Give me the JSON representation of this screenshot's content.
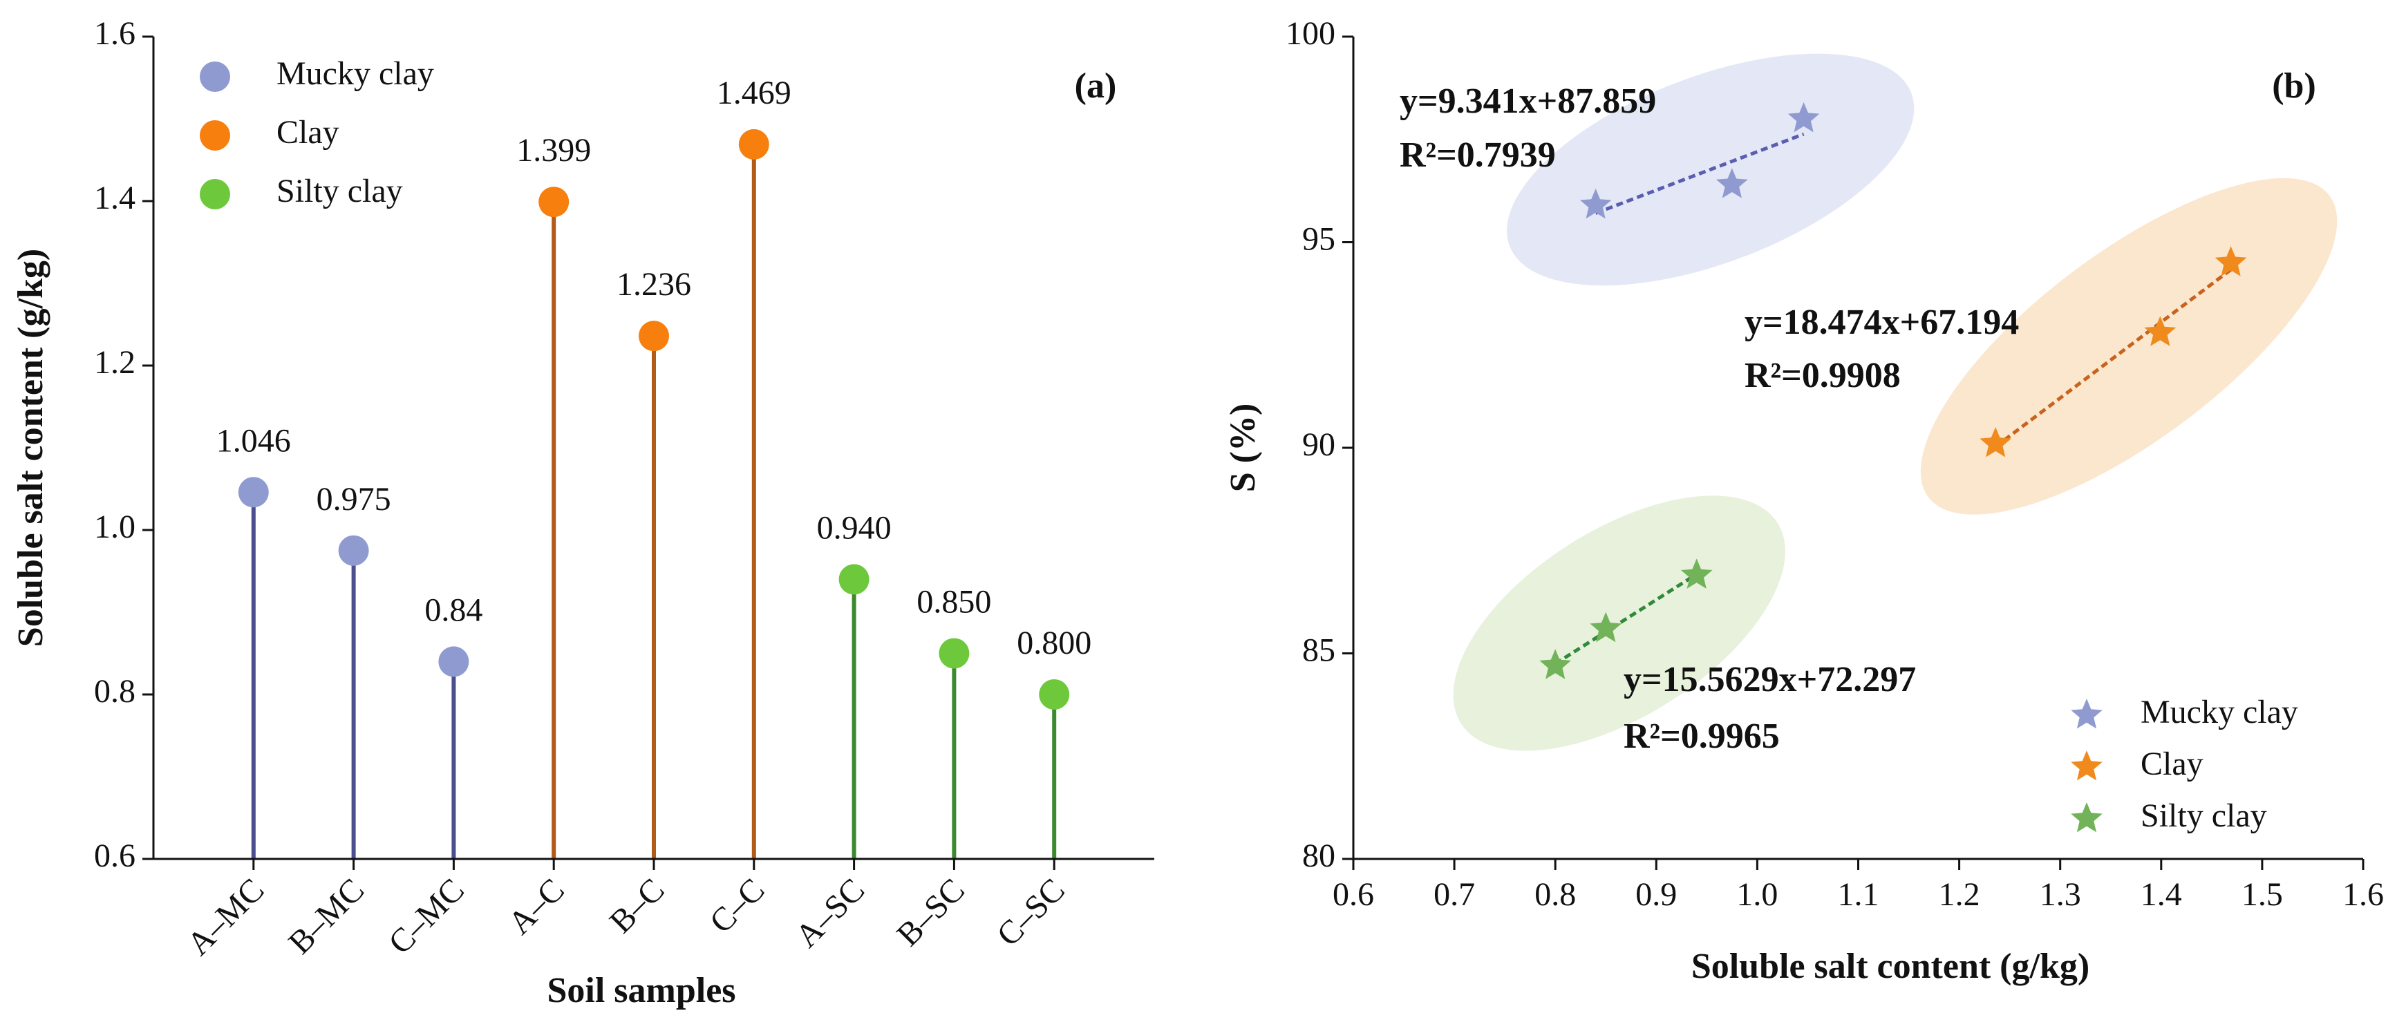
{
  "chart_data": [
    {
      "type": "lollipop",
      "annotation": "(a)",
      "xlabel": "Soil samples",
      "ylabel": "Soluble salt content (g/kg)",
      "categories": [
        "A–MC",
        "B–MC",
        "C–MC",
        "A–C",
        "B–C",
        "C–C",
        "A–SC",
        "B–SC",
        "C–SC"
      ],
      "ylim": [
        0.6,
        1.6
      ],
      "yticks": [
        0.6,
        0.8,
        {
          "value": 1,
          "label": "1.0"
        },
        1.2,
        1.4,
        1.6
      ],
      "legend": "top-left",
      "series": [
        {
          "name": "Mucky clay",
          "color": "#8f9bd0",
          "stem_color": "#4b4f8e",
          "label_color": "#5a5e9c",
          "values": [
            1.046,
            0.975,
            0.84,
            null,
            null,
            null,
            null,
            null,
            null
          ],
          "value_labels": [
            "1.046",
            "0.975",
            "0.84",
            null,
            null,
            null,
            null,
            null,
            null
          ]
        },
        {
          "name": "Clay",
          "color": "#f77f0e",
          "stem_color": "#b25a18",
          "label_color": "#a55a1c",
          "values": [
            null,
            null,
            null,
            1.399,
            1.236,
            1.469,
            null,
            null,
            null
          ],
          "value_labels": [
            null,
            null,
            null,
            "1.399",
            "1.236",
            "1.469",
            null,
            null,
            null
          ]
        },
        {
          "name": "Silty clay",
          "color": "#6dc93b",
          "stem_color": "#3c8a30",
          "label_color": "#3fb56d",
          "values": [
            null,
            null,
            null,
            null,
            null,
            null,
            0.94,
            0.85,
            0.8
          ],
          "value_labels": [
            null,
            null,
            null,
            null,
            null,
            null,
            "0.940",
            "0.850",
            "0.800"
          ]
        }
      ]
    },
    {
      "type": "scatter",
      "annotation": "(b)",
      "xlabel": "Soluble salt content (g/kg)",
      "ylabel": "S (%)",
      "xlim": [
        0.6,
        1.6
      ],
      "xticks": [
        0.6,
        0.7,
        0.8,
        0.9,
        {
          "value": 1,
          "label": "1.0"
        },
        1.1,
        1.2,
        1.3,
        1.4,
        1.5,
        1.6
      ],
      "ylim": [
        80,
        100
      ],
      "yticks": [
        80,
        85,
        90,
        95,
        100
      ],
      "legend": "bottom-right",
      "series": [
        {
          "name": "Mucky clay",
          "color": "#8f9bd0",
          "line_color": "#5a5eb0",
          "ellipse_color": "#dfe3f3",
          "x": [
            0.84,
            0.975,
            1.046
          ],
          "values": [
            95.9,
            96.4,
            98.0
          ],
          "trendline": {
            "slope": 9.341,
            "intercept": 87.859,
            "label": "y=9.341x+87.859",
            "r2_label": "R²=0.7939"
          }
        },
        {
          "name": "Clay",
          "color": "#f08a1c",
          "line_color": "#c8621c",
          "ellipse_color": "#fae2c6",
          "x": [
            1.236,
            1.399,
            1.469
          ],
          "values": [
            90.1,
            92.8,
            94.5
          ],
          "trendline": {
            "slope": 18.474,
            "intercept": 67.194,
            "label": "y=18.474x+67.194",
            "r2_label": "R²=0.9908"
          }
        },
        {
          "name": "Silty clay",
          "color": "#72b35a",
          "line_color": "#2f8a3a",
          "ellipse_color": "#e3efd6",
          "x": [
            0.8,
            0.85,
            0.94
          ],
          "values": [
            84.7,
            85.6,
            86.9
          ],
          "trendline": {
            "slope": 15.5629,
            "intercept": 72.297,
            "label": "y=15.5629x+72.297",
            "r2_label": "R²=0.9965"
          }
        }
      ]
    }
  ]
}
